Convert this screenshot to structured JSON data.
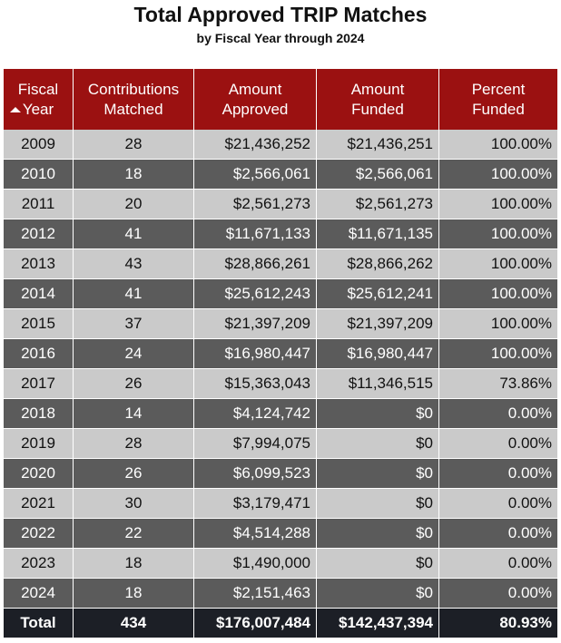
{
  "header": {
    "title": "Total Approved TRIP Matches",
    "subtitle": "by Fiscal Year through 2024"
  },
  "columns": {
    "year": [
      "Fiscal",
      "Year"
    ],
    "contrib": [
      "Contributions",
      "Matched"
    ],
    "approved": [
      "Amount",
      "Approved"
    ],
    "funded": [
      "Amount",
      "Funded"
    ],
    "pct": [
      "Percent",
      "Funded"
    ]
  },
  "sort": {
    "column": "year",
    "direction": "ascending",
    "icon": "sort-ascending-icon"
  },
  "colors": {
    "header_bg": "#9b1111",
    "row_light": "#cacaca",
    "row_dark": "#5b5b5b",
    "total_bg": "#1c1f26"
  },
  "chart_data": {
    "type": "table",
    "title": "Total Approved TRIP Matches",
    "subtitle": "by Fiscal Year through 2024",
    "columns": [
      "Fiscal Year",
      "Contributions Matched",
      "Amount Approved",
      "Amount Funded",
      "Percent Funded"
    ],
    "rows": [
      [
        "2009",
        "28",
        "$21,436,252",
        "$21,436,251",
        "100.00%"
      ],
      [
        "2010",
        "18",
        "$2,566,061",
        "$2,566,061",
        "100.00%"
      ],
      [
        "2011",
        "20",
        "$2,561,273",
        "$2,561,273",
        "100.00%"
      ],
      [
        "2012",
        "41",
        "$11,671,133",
        "$11,671,135",
        "100.00%"
      ],
      [
        "2013",
        "43",
        "$28,866,261",
        "$28,866,262",
        "100.00%"
      ],
      [
        "2014",
        "41",
        "$25,612,243",
        "$25,612,241",
        "100.00%"
      ],
      [
        "2015",
        "37",
        "$21,397,209",
        "$21,397,209",
        "100.00%"
      ],
      [
        "2016",
        "24",
        "$16,980,447",
        "$16,980,447",
        "100.00%"
      ],
      [
        "2017",
        "26",
        "$15,363,043",
        "$11,346,515",
        "73.86%"
      ],
      [
        "2018",
        "14",
        "$4,124,742",
        "$0",
        "0.00%"
      ],
      [
        "2019",
        "28",
        "$7,994,075",
        "$0",
        "0.00%"
      ],
      [
        "2020",
        "26",
        "$6,099,523",
        "$0",
        "0.00%"
      ],
      [
        "2021",
        "30",
        "$3,179,471",
        "$0",
        "0.00%"
      ],
      [
        "2022",
        "22",
        "$4,514,288",
        "$0",
        "0.00%"
      ],
      [
        "2023",
        "18",
        "$1,490,000",
        "$0",
        "0.00%"
      ],
      [
        "2024",
        "18",
        "$2,151,463",
        "$0",
        "0.00%"
      ]
    ],
    "total": [
      "Total",
      "434",
      "$176,007,484",
      "$142,437,394",
      "80.93%"
    ]
  }
}
